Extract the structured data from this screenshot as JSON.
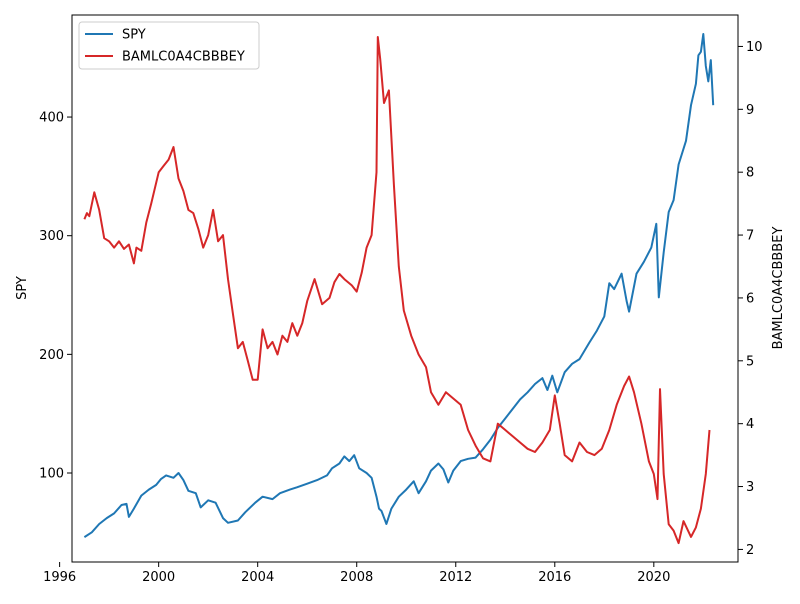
{
  "chart_data": {
    "type": "line",
    "title": "",
    "xlabel": "",
    "x_ticks": [
      "1996",
      "2000",
      "2004",
      "2008",
      "2012",
      "2016",
      "2020"
    ],
    "xlim": [
      1996.5,
      2023.4
    ],
    "y_left": {
      "label": "SPY",
      "color": "#1f77b4",
      "ticks": [
        "100",
        "200",
        "300",
        "400"
      ],
      "ylim": [
        25,
        486
      ]
    },
    "y_right": {
      "label": "BAMLC0A4CBBBEY",
      "color": "#d62728",
      "ticks": [
        "2",
        "3",
        "4",
        "5",
        "6",
        "7",
        "8",
        "9",
        "10"
      ],
      "ylim": [
        1.8,
        10.5
      ]
    },
    "legend": {
      "position": "top-left",
      "entries": [
        {
          "name": "SPY",
          "color": "#1f77b4"
        },
        {
          "name": "BAMLC0A4CBBBEY",
          "color": "#d62728"
        }
      ]
    },
    "series": [
      {
        "name": "SPY",
        "axis": "left",
        "color": "#1f77b4",
        "points": [
          [
            1997.0,
            46
          ],
          [
            1997.3,
            50
          ],
          [
            1997.6,
            57
          ],
          [
            1997.9,
            62
          ],
          [
            1998.2,
            66
          ],
          [
            1998.5,
            73
          ],
          [
            1998.7,
            74
          ],
          [
            1998.8,
            63
          ],
          [
            1999.0,
            70
          ],
          [
            1999.3,
            81
          ],
          [
            1999.6,
            86
          ],
          [
            1999.9,
            90
          ],
          [
            2000.1,
            95
          ],
          [
            2000.3,
            98
          ],
          [
            2000.6,
            96
          ],
          [
            2000.8,
            100
          ],
          [
            2001.0,
            94
          ],
          [
            2001.2,
            85
          ],
          [
            2001.5,
            83
          ],
          [
            2001.7,
            71
          ],
          [
            2002.0,
            77
          ],
          [
            2002.3,
            75
          ],
          [
            2002.6,
            62
          ],
          [
            2002.8,
            58
          ],
          [
            2003.2,
            60
          ],
          [
            2003.5,
            67
          ],
          [
            2003.9,
            75
          ],
          [
            2004.2,
            80
          ],
          [
            2004.6,
            78
          ],
          [
            2004.9,
            83
          ],
          [
            2005.3,
            86
          ],
          [
            2005.6,
            88
          ],
          [
            2006.0,
            91
          ],
          [
            2006.4,
            94
          ],
          [
            2006.8,
            98
          ],
          [
            2007.0,
            104
          ],
          [
            2007.3,
            108
          ],
          [
            2007.5,
            114
          ],
          [
            2007.7,
            110
          ],
          [
            2007.9,
            115
          ],
          [
            2008.1,
            104
          ],
          [
            2008.4,
            100
          ],
          [
            2008.6,
            96
          ],
          [
            2008.8,
            80
          ],
          [
            2008.9,
            70
          ],
          [
            2009.0,
            68
          ],
          [
            2009.2,
            57
          ],
          [
            2009.4,
            70
          ],
          [
            2009.7,
            80
          ],
          [
            2010.0,
            86
          ],
          [
            2010.3,
            93
          ],
          [
            2010.5,
            83
          ],
          [
            2010.8,
            93
          ],
          [
            2011.0,
            102
          ],
          [
            2011.3,
            108
          ],
          [
            2011.5,
            103
          ],
          [
            2011.7,
            92
          ],
          [
            2011.9,
            102
          ],
          [
            2012.2,
            110
          ],
          [
            2012.5,
            112
          ],
          [
            2012.8,
            113
          ],
          [
            2013.1,
            120
          ],
          [
            2013.4,
            128
          ],
          [
            2013.7,
            138
          ],
          [
            2014.0,
            146
          ],
          [
            2014.3,
            154
          ],
          [
            2014.6,
            162
          ],
          [
            2014.9,
            168
          ],
          [
            2015.2,
            175
          ],
          [
            2015.5,
            180
          ],
          [
            2015.7,
            170
          ],
          [
            2015.9,
            182
          ],
          [
            2016.1,
            168
          ],
          [
            2016.4,
            185
          ],
          [
            2016.7,
            192
          ],
          [
            2017.0,
            196
          ],
          [
            2017.4,
            210
          ],
          [
            2017.7,
            220
          ],
          [
            2018.0,
            232
          ],
          [
            2018.2,
            260
          ],
          [
            2018.4,
            255
          ],
          [
            2018.7,
            268
          ],
          [
            2018.9,
            245
          ],
          [
            2019.0,
            236
          ],
          [
            2019.3,
            268
          ],
          [
            2019.6,
            278
          ],
          [
            2019.9,
            290
          ],
          [
            2020.1,
            310
          ],
          [
            2020.2,
            248
          ],
          [
            2020.4,
            286
          ],
          [
            2020.6,
            320
          ],
          [
            2020.8,
            330
          ],
          [
            2021.0,
            360
          ],
          [
            2021.3,
            380
          ],
          [
            2021.5,
            410
          ],
          [
            2021.7,
            428
          ],
          [
            2021.8,
            452
          ],
          [
            2021.9,
            455
          ],
          [
            2022.0,
            470
          ],
          [
            2022.1,
            443
          ],
          [
            2022.2,
            430
          ],
          [
            2022.3,
            448
          ],
          [
            2022.4,
            410
          ]
        ]
      },
      {
        "name": "BAMLC0A4CBBBEY",
        "axis": "right",
        "color": "#d62728",
        "points": [
          [
            1997.0,
            7.25
          ],
          [
            1997.1,
            7.35
          ],
          [
            1997.2,
            7.3
          ],
          [
            1997.4,
            7.68
          ],
          [
            1997.6,
            7.4
          ],
          [
            1997.8,
            6.95
          ],
          [
            1998.0,
            6.9
          ],
          [
            1998.2,
            6.8
          ],
          [
            1998.4,
            6.9
          ],
          [
            1998.6,
            6.78
          ],
          [
            1998.8,
            6.85
          ],
          [
            1999.0,
            6.55
          ],
          [
            1999.1,
            6.8
          ],
          [
            1999.3,
            6.75
          ],
          [
            1999.5,
            7.2
          ],
          [
            1999.7,
            7.5
          ],
          [
            2000.0,
            8.0
          ],
          [
            2000.2,
            8.1
          ],
          [
            2000.4,
            8.2
          ],
          [
            2000.6,
            8.4
          ],
          [
            2000.8,
            7.9
          ],
          [
            2001.0,
            7.7
          ],
          [
            2001.2,
            7.4
          ],
          [
            2001.4,
            7.35
          ],
          [
            2001.6,
            7.1
          ],
          [
            2001.8,
            6.8
          ],
          [
            2002.0,
            7.0
          ],
          [
            2002.2,
            7.4
          ],
          [
            2002.4,
            6.9
          ],
          [
            2002.6,
            7.0
          ],
          [
            2002.8,
            6.3
          ],
          [
            2003.0,
            5.75
          ],
          [
            2003.2,
            5.2
          ],
          [
            2003.4,
            5.3
          ],
          [
            2003.6,
            5.0
          ],
          [
            2003.8,
            4.7
          ],
          [
            2004.0,
            4.7
          ],
          [
            2004.2,
            5.5
          ],
          [
            2004.4,
            5.2
          ],
          [
            2004.6,
            5.3
          ],
          [
            2004.8,
            5.1
          ],
          [
            2005.0,
            5.4
          ],
          [
            2005.2,
            5.3
          ],
          [
            2005.4,
            5.6
          ],
          [
            2005.6,
            5.4
          ],
          [
            2005.8,
            5.6
          ],
          [
            2006.0,
            5.95
          ],
          [
            2006.3,
            6.3
          ],
          [
            2006.6,
            5.9
          ],
          [
            2006.9,
            6.0
          ],
          [
            2007.1,
            6.25
          ],
          [
            2007.3,
            6.38
          ],
          [
            2007.5,
            6.3
          ],
          [
            2007.8,
            6.2
          ],
          [
            2008.0,
            6.1
          ],
          [
            2008.2,
            6.4
          ],
          [
            2008.4,
            6.8
          ],
          [
            2008.6,
            7.0
          ],
          [
            2008.8,
            8.0
          ],
          [
            2008.85,
            10.15
          ],
          [
            2008.95,
            9.8
          ],
          [
            2009.1,
            9.1
          ],
          [
            2009.3,
            9.3
          ],
          [
            2009.5,
            7.8
          ],
          [
            2009.7,
            6.5
          ],
          [
            2009.9,
            5.8
          ],
          [
            2010.2,
            5.4
          ],
          [
            2010.5,
            5.1
          ],
          [
            2010.8,
            4.9
          ],
          [
            2011.0,
            4.5
          ],
          [
            2011.3,
            4.3
          ],
          [
            2011.6,
            4.5
          ],
          [
            2011.9,
            4.4
          ],
          [
            2012.2,
            4.3
          ],
          [
            2012.5,
            3.9
          ],
          [
            2012.8,
            3.65
          ],
          [
            2013.1,
            3.45
          ],
          [
            2013.4,
            3.4
          ],
          [
            2013.7,
            4.0
          ],
          [
            2014.0,
            3.9
          ],
          [
            2014.3,
            3.8
          ],
          [
            2014.6,
            3.7
          ],
          [
            2014.9,
            3.6
          ],
          [
            2015.2,
            3.55
          ],
          [
            2015.5,
            3.7
          ],
          [
            2015.8,
            3.9
          ],
          [
            2016.0,
            4.45
          ],
          [
            2016.2,
            4.0
          ],
          [
            2016.4,
            3.5
          ],
          [
            2016.7,
            3.4
          ],
          [
            2017.0,
            3.7
          ],
          [
            2017.3,
            3.55
          ],
          [
            2017.6,
            3.5
          ],
          [
            2017.9,
            3.6
          ],
          [
            2018.2,
            3.9
          ],
          [
            2018.5,
            4.3
          ],
          [
            2018.8,
            4.6
          ],
          [
            2019.0,
            4.75
          ],
          [
            2019.2,
            4.5
          ],
          [
            2019.5,
            4.0
          ],
          [
            2019.8,
            3.4
          ],
          [
            2020.0,
            3.2
          ],
          [
            2020.15,
            2.8
          ],
          [
            2020.25,
            4.55
          ],
          [
            2020.4,
            3.2
          ],
          [
            2020.6,
            2.4
          ],
          [
            2020.8,
            2.3
          ],
          [
            2021.0,
            2.1
          ],
          [
            2021.2,
            2.45
          ],
          [
            2021.5,
            2.2
          ],
          [
            2021.7,
            2.35
          ],
          [
            2021.9,
            2.65
          ],
          [
            2022.1,
            3.2
          ],
          [
            2022.25,
            3.9
          ]
        ]
      }
    ]
  }
}
